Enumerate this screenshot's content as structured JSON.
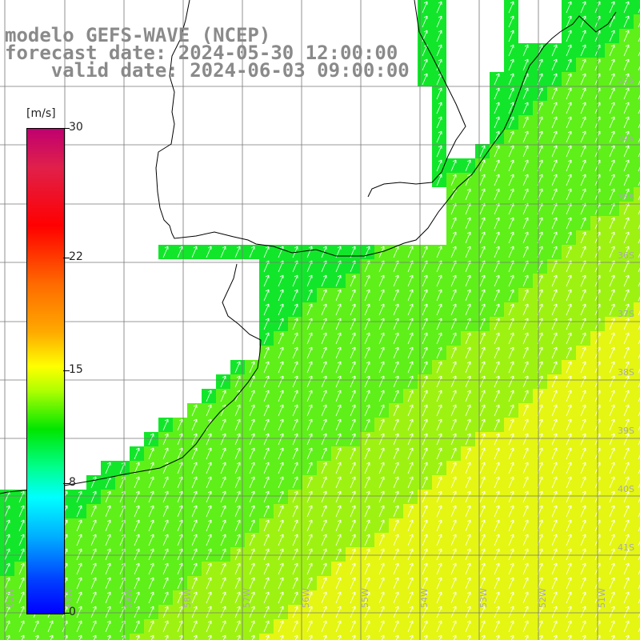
{
  "title": {
    "line1": "modelo GEFS-WAVE (NCEP)",
    "line2": "forecast date: 2024-05-30 12:00:00",
    "line3": "valid date: 2024-06-03 09:00:00"
  },
  "colorbar": {
    "unit": "[m/s]",
    "ticks": [
      "30",
      "22",
      "15",
      "8",
      "0"
    ],
    "tick_values": [
      30,
      22,
      15,
      8,
      0
    ],
    "range": [
      0,
      30
    ]
  },
  "map": {
    "lon_labels": [
      "61W",
      "60W",
      "59W",
      "58W",
      "57W",
      "56W",
      "55W",
      "54W",
      "53W",
      "52W",
      "51W"
    ],
    "lat_labels": [
      "33S",
      "34S",
      "35S",
      "36S",
      "37S",
      "38S",
      "39S",
      "40S",
      "41S"
    ],
    "variable": "wind speed with direction arrows"
  }
}
